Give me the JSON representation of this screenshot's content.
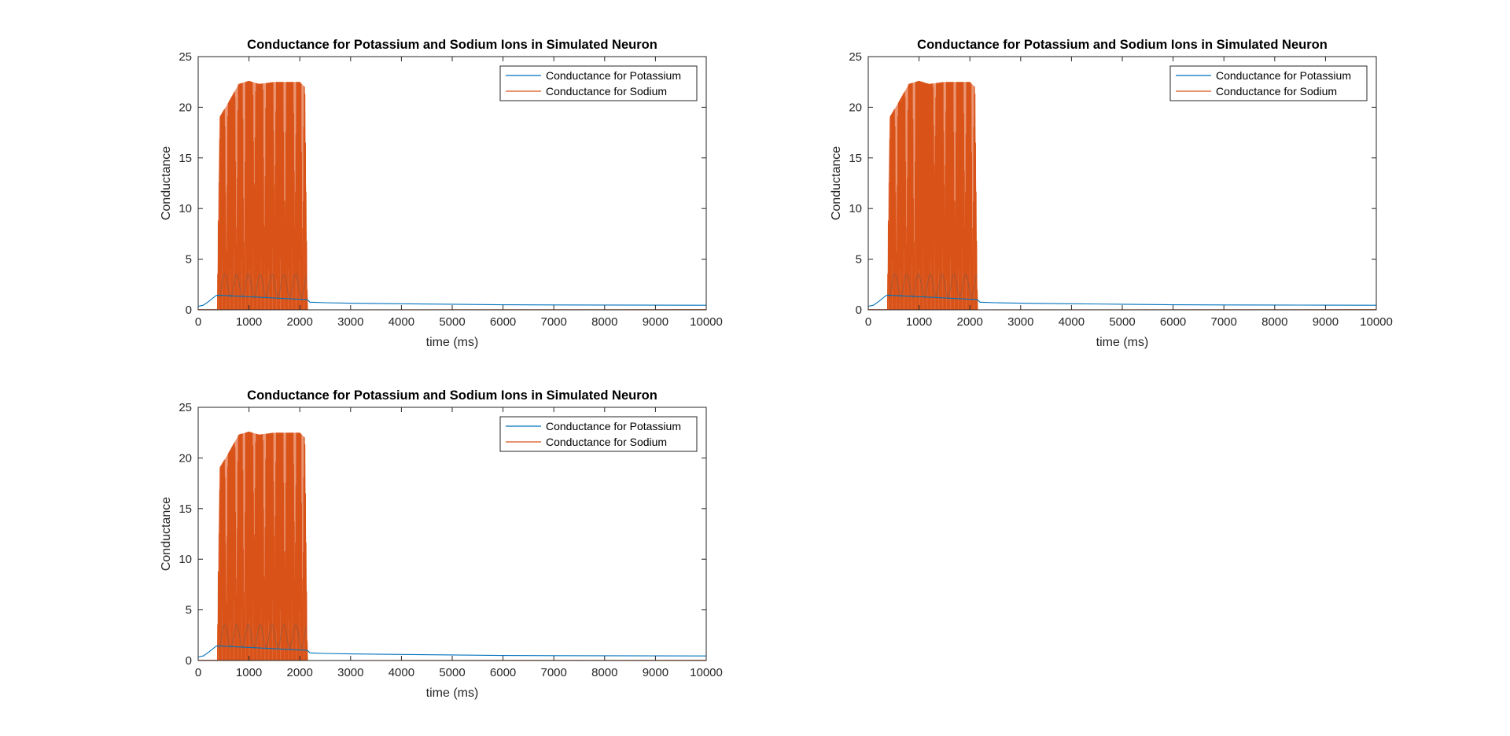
{
  "colors": {
    "potassium": "#0072BD",
    "sodium": "#D95319",
    "axis": "#262626",
    "background": "#ffffff"
  },
  "chart_data": [
    {
      "type": "line",
      "title": "Conductance for Potassium and Sodium Ions in Simulated Neuron",
      "xlabel": "time (ms)",
      "ylabel": "Conductance",
      "xlim": [
        0,
        10000
      ],
      "ylim": [
        0,
        25
      ],
      "xticks": [
        0,
        1000,
        2000,
        3000,
        4000,
        5000,
        6000,
        7000,
        8000,
        9000,
        10000
      ],
      "yticks": [
        0,
        5,
        10,
        15,
        20,
        25
      ],
      "grid": false,
      "legend_position": "top-right",
      "series": [
        {
          "name": "Conductance for Potassium",
          "color": "#0072BD",
          "x": [
            0,
            100,
            200,
            300,
            350,
            380,
            2150,
            2200,
            2500,
            3000,
            4000,
            5000,
            6000,
            7000,
            8000,
            9000,
            10000
          ],
          "y": [
            0.35,
            0.45,
            0.8,
            1.2,
            1.4,
            1.45,
            1.0,
            0.75,
            0.7,
            0.65,
            0.6,
            0.55,
            0.5,
            0.48,
            0.47,
            0.46,
            0.45
          ]
        },
        {
          "name": "Conductance for Sodium",
          "color": "#D95319",
          "spike_train": {
            "start": 380,
            "end": 2150,
            "period": 11,
            "min": 0.0,
            "envelope_x": [
              380,
              400,
              420,
              600,
              800,
              1000,
              1200,
              1500,
              1800,
              2000,
              2100,
              2150
            ],
            "envelope_y": [
              0,
              13,
              19,
              20.5,
              22.3,
              22.6,
              22.3,
              22.5,
              22.5,
              22.5,
              22.0,
              0
            ],
            "gaps_x": [
              400,
              550,
              750,
              900,
              1100,
              1300,
              1500,
              1700,
              1900,
              2050
            ],
            "gaps_depth": [
              8,
              2,
              4,
              1,
              10,
              4,
              8,
              4,
              7,
              2
            ]
          },
          "baseline_after": 0.02
        }
      ]
    },
    {
      "type": "line",
      "title": "Conductance for Potassium and Sodium Ions in Simulated Neuron",
      "xlabel": "time (ms)",
      "ylabel": "Conductance",
      "xlim": [
        0,
        10000
      ],
      "ylim": [
        0,
        25
      ],
      "xticks": [
        0,
        1000,
        2000,
        3000,
        4000,
        5000,
        6000,
        7000,
        8000,
        9000,
        10000
      ],
      "yticks": [
        0,
        5,
        10,
        15,
        20,
        25
      ],
      "grid": false,
      "legend_position": "top-right",
      "series": [
        {
          "name": "Conductance for Potassium",
          "color": "#0072BD",
          "x": [
            0,
            100,
            200,
            300,
            350,
            380,
            2150,
            2200,
            2500,
            3000,
            4000,
            5000,
            6000,
            7000,
            8000,
            9000,
            10000
          ],
          "y": [
            0.35,
            0.45,
            0.8,
            1.2,
            1.4,
            1.45,
            1.0,
            0.75,
            0.7,
            0.65,
            0.6,
            0.55,
            0.5,
            0.48,
            0.47,
            0.46,
            0.45
          ]
        },
        {
          "name": "Conductance for Sodium",
          "color": "#D95319",
          "spike_train": {
            "start": 380,
            "end": 2150,
            "period": 11,
            "min": 0.0,
            "envelope_x": [
              380,
              400,
              420,
              600,
              800,
              1000,
              1200,
              1500,
              1800,
              2000,
              2100,
              2150
            ],
            "envelope_y": [
              0,
              13,
              19,
              20.5,
              22.3,
              22.6,
              22.3,
              22.5,
              22.5,
              22.5,
              22.0,
              0
            ],
            "gaps_x": [
              400,
              550,
              750,
              900,
              1300,
              1500,
              1700,
              1900,
              2050
            ],
            "gaps_depth": [
              8,
              2,
              4,
              1,
              12,
              8,
              4,
              7,
              2
            ]
          },
          "baseline_after": 0.02
        }
      ]
    },
    {
      "type": "line",
      "title": "Conductance for Potassium and Sodium Ions in Simulated Neuron",
      "xlabel": "time (ms)",
      "ylabel": "Conductance",
      "xlim": [
        0,
        10000
      ],
      "ylim": [
        0,
        25
      ],
      "xticks": [
        0,
        1000,
        2000,
        3000,
        4000,
        5000,
        6000,
        7000,
        8000,
        9000,
        10000
      ],
      "yticks": [
        0,
        5,
        10,
        15,
        20,
        25
      ],
      "grid": false,
      "legend_position": "top-right",
      "series": [
        {
          "name": "Conductance for Potassium",
          "color": "#0072BD",
          "x": [
            0,
            100,
            200,
            300,
            350,
            380,
            2150,
            2200,
            2500,
            3000,
            4000,
            5000,
            6000,
            7000,
            8000,
            9000,
            10000
          ],
          "y": [
            0.35,
            0.45,
            0.8,
            1.2,
            1.4,
            1.45,
            1.0,
            0.75,
            0.7,
            0.65,
            0.6,
            0.55,
            0.5,
            0.48,
            0.47,
            0.46,
            0.45
          ]
        },
        {
          "name": "Conductance for Sodium",
          "color": "#D95319",
          "spike_train": {
            "start": 380,
            "end": 2150,
            "period": 11,
            "min": 0.0,
            "envelope_x": [
              380,
              400,
              420,
              600,
              800,
              1000,
              1200,
              1500,
              1800,
              2000,
              2100,
              2150
            ],
            "envelope_y": [
              0,
              13,
              19,
              20.5,
              22.3,
              22.6,
              22.3,
              22.5,
              22.5,
              22.5,
              22.0,
              0
            ],
            "gaps_x": [
              400,
              550,
              750,
              900,
              1100,
              1300,
              1500,
              1700,
              1900,
              2050
            ],
            "gaps_depth": [
              8,
              2,
              4,
              1,
              10,
              4,
              8,
              4,
              7,
              2
            ]
          },
          "baseline_after": 0.02
        }
      ]
    }
  ]
}
